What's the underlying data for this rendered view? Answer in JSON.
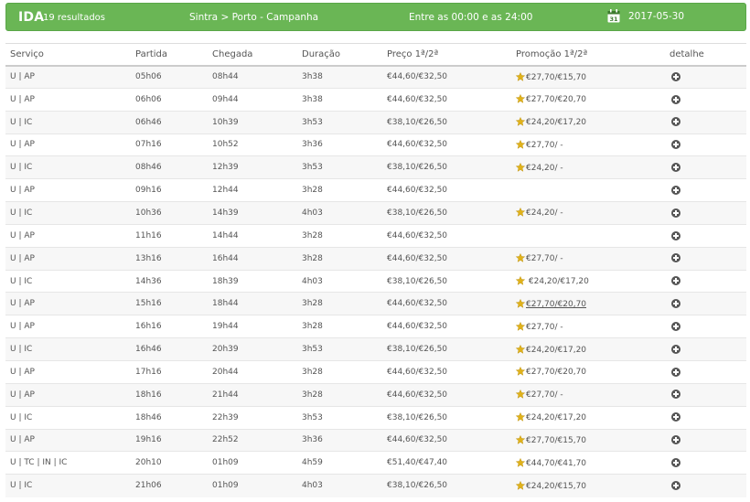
{
  "header": {
    "direction": "IDA",
    "results_count": "19 resultados",
    "route": "Sintra > Porto - Campanha",
    "time_window": "Entre as 00:00 e as 24:00",
    "date": "2017-05-30",
    "calendar_icon": "calendar-icon",
    "calendar_day": "31",
    "background_color": "#6ab655"
  },
  "table": {
    "columns": [
      "Serviço",
      "Partida",
      "Chegada",
      "Duração",
      "Preço 1ª/2ª",
      "Promoção 1ª/2ª",
      "detalhe"
    ],
    "rows": [
      {
        "service": "U | AP",
        "departure": "05h06",
        "arrival": "08h44",
        "duration": "3h38",
        "price": "€44,60/€32,50",
        "promo": "€27,70/€15,70"
      },
      {
        "service": "U | AP",
        "departure": "06h06",
        "arrival": "09h44",
        "duration": "3h38",
        "price": "€44,60/€32,50",
        "promo": "€27,70/€20,70"
      },
      {
        "service": "U | IC",
        "departure": "06h46",
        "arrival": "10h39",
        "duration": "3h53",
        "price": "€38,10/€26,50",
        "promo": "€24,20/€17,20"
      },
      {
        "service": "U | AP",
        "departure": "07h16",
        "arrival": "10h52",
        "duration": "3h36",
        "price": "€44,60/€32,50",
        "promo": "€27,70/ -"
      },
      {
        "service": "U | IC",
        "departure": "08h46",
        "arrival": "12h39",
        "duration": "3h53",
        "price": "€38,10/€26,50",
        "promo": "€24,20/ -"
      },
      {
        "service": "U | AP",
        "departure": "09h16",
        "arrival": "12h44",
        "duration": "3h28",
        "price": "€44,60/€32,50",
        "promo": ""
      },
      {
        "service": "U | IC",
        "departure": "10h36",
        "arrival": "14h39",
        "duration": "4h03",
        "price": "€38,10/€26,50",
        "promo": "€24,20/ -"
      },
      {
        "service": "U | AP",
        "departure": "11h16",
        "arrival": "14h44",
        "duration": "3h28",
        "price": "€44,60/€32,50",
        "promo": ""
      },
      {
        "service": "U | AP",
        "departure": "13h16",
        "arrival": "16h44",
        "duration": "3h28",
        "price": "€44,60/€32,50",
        "promo": "€27,70/ -"
      },
      {
        "service": "U | IC",
        "departure": "14h36",
        "arrival": "18h39",
        "duration": "4h03",
        "price": "€38,10/€26,50",
        "promo": " €24,20/€17,20"
      },
      {
        "service": "U | AP",
        "departure": "15h16",
        "arrival": "18h44",
        "duration": "3h28",
        "price": "€44,60/€32,50",
        "promo": "€27,70/€20,70",
        "promo_underline": true
      },
      {
        "service": "U | AP",
        "departure": "16h16",
        "arrival": "19h44",
        "duration": "3h28",
        "price": "€44,60/€32,50",
        "promo": "€27,70/ -"
      },
      {
        "service": "U | IC",
        "departure": "16h46",
        "arrival": "20h39",
        "duration": "3h53",
        "price": "€38,10/€26,50",
        "promo": "€24,20/€17,20"
      },
      {
        "service": "U | AP",
        "departure": "17h16",
        "arrival": "20h44",
        "duration": "3h28",
        "price": "€44,60/€32,50",
        "promo": "€27,70/€20,70"
      },
      {
        "service": "U | AP",
        "departure": "18h16",
        "arrival": "21h44",
        "duration": "3h28",
        "price": "€44,60/€32,50",
        "promo": "€27,70/ -"
      },
      {
        "service": "U | IC",
        "departure": "18h46",
        "arrival": "22h39",
        "duration": "3h53",
        "price": "€38,10/€26,50",
        "promo": "€24,20/€17,20"
      },
      {
        "service": "U | AP",
        "departure": "19h16",
        "arrival": "22h52",
        "duration": "3h36",
        "price": "€44,60/€32,50",
        "promo": "€27,70/€15,70"
      },
      {
        "service": "U | TC | IN | IC",
        "departure": "20h10",
        "arrival": "01h09",
        "duration": "4h59",
        "price": "€51,40/€47,40",
        "promo": "€44,70/€41,70"
      },
      {
        "service": "U | IC",
        "departure": "21h06",
        "arrival": "01h09",
        "duration": "4h03",
        "price": "€38,10/€26,50",
        "promo": "€24,20/€15,70"
      }
    ],
    "promo_icon": "star-icon",
    "detail_icon": "plus-circle-icon",
    "star_color": "#e0b21a"
  }
}
